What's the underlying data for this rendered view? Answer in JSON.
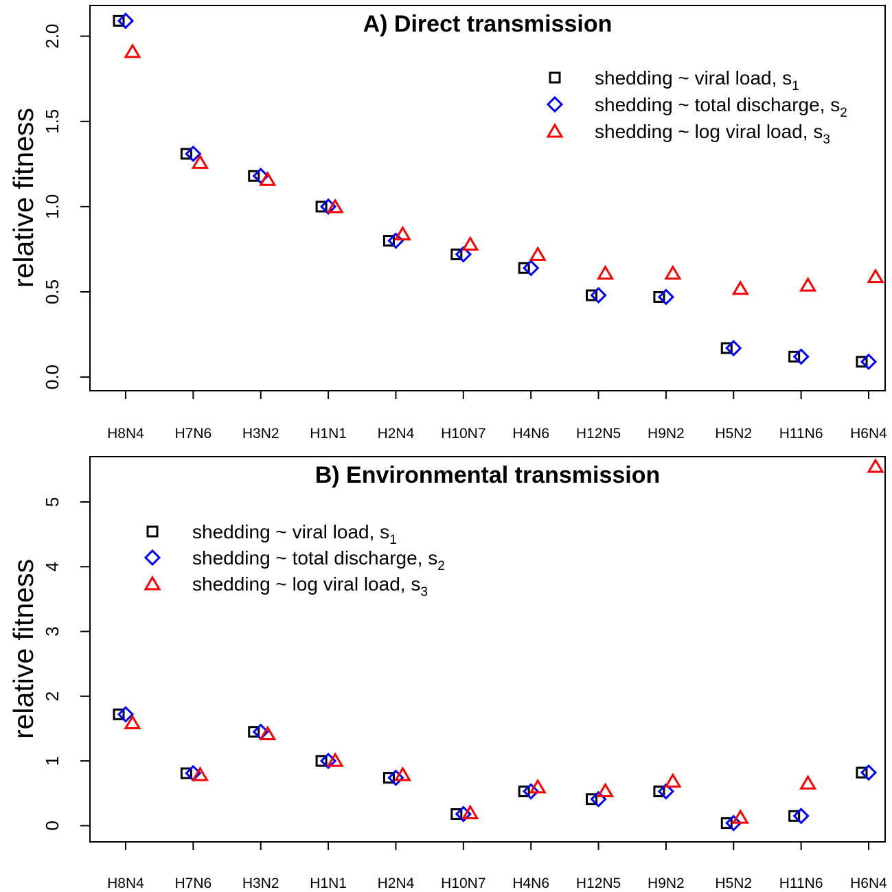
{
  "chart_data": [
    {
      "type": "scatter",
      "title": "A) Direct transmission",
      "xlabel": "",
      "ylabel": "relative fitness",
      "categories": [
        "H8N4",
        "H7N6",
        "H3N2",
        "H1N1",
        "H2N4",
        "H10N7",
        "H4N6",
        "H12N5",
        "H9N2",
        "H5N2",
        "H11N6",
        "H6N4"
      ],
      "ylim": [
        -0.08,
        2.18
      ],
      "yticks": [
        "0.0",
        "0.5",
        "1.0",
        "1.5",
        "2.0"
      ],
      "grid": false,
      "legend_position": "top-right",
      "series": [
        {
          "name": "shedding ~ viral load, s",
          "subscript": "1",
          "marker": "square",
          "color": "#000000",
          "values": [
            2.09,
            1.31,
            1.18,
            1.0,
            0.8,
            0.72,
            0.64,
            0.48,
            0.47,
            0.17,
            0.12,
            0.09
          ]
        },
        {
          "name": "shedding ~ total discharge, s",
          "subscript": "2",
          "marker": "diamond",
          "color": "#0000ff",
          "values": [
            2.09,
            1.31,
            1.18,
            1.0,
            0.8,
            0.72,
            0.64,
            0.48,
            0.47,
            0.17,
            0.12,
            0.09
          ]
        },
        {
          "name": "shedding ~ log viral load, s",
          "subscript": "3",
          "marker": "triangle",
          "color": "#ff0000",
          "values": [
            1.91,
            1.26,
            1.16,
            1.0,
            0.84,
            0.78,
            0.72,
            0.61,
            0.61,
            0.52,
            0.54,
            0.59
          ]
        }
      ]
    },
    {
      "type": "scatter",
      "title": "B) Environmental transmission",
      "xlabel": "",
      "ylabel": "relative fitness",
      "categories": [
        "H8N4",
        "H7N6",
        "H3N2",
        "H1N1",
        "H2N4",
        "H10N7",
        "H4N6",
        "H12N5",
        "H9N2",
        "H5N2",
        "H11N6",
        "H6N4"
      ],
      "ylim": [
        -0.25,
        5.7
      ],
      "yticks": [
        "0",
        "1",
        "2",
        "3",
        "4",
        "5"
      ],
      "grid": false,
      "legend_position": "top-left",
      "series": [
        {
          "name": "shedding ~ viral load, s",
          "subscript": "1",
          "marker": "square",
          "color": "#000000",
          "values": [
            1.72,
            0.81,
            1.45,
            1.0,
            0.74,
            0.18,
            0.53,
            0.41,
            0.53,
            0.04,
            0.15,
            0.82
          ]
        },
        {
          "name": "shedding ~ total discharge, s",
          "subscript": "2",
          "marker": "diamond",
          "color": "#0000ff",
          "values": [
            1.72,
            0.81,
            1.45,
            1.0,
            0.74,
            0.18,
            0.53,
            0.41,
            0.53,
            0.04,
            0.15,
            0.82
          ]
        },
        {
          "name": "shedding ~ log viral load, s",
          "subscript": "3",
          "marker": "triangle",
          "color": "#ff0000",
          "values": [
            1.59,
            0.79,
            1.42,
            1.01,
            0.79,
            0.2,
            0.6,
            0.54,
            0.69,
            0.13,
            0.66,
            5.55
          ]
        }
      ]
    }
  ]
}
